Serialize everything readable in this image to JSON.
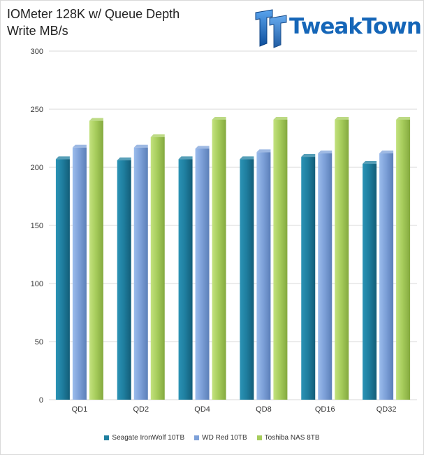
{
  "header": {
    "title_line1": "IOMeter 128K w/ Queue Depth",
    "title_line2": "Write MB/s",
    "logo_text": "TweakTown"
  },
  "chart_data": {
    "type": "bar",
    "title": "IOMeter 128K w/ Queue Depth Write MB/s",
    "xlabel": "",
    "ylabel": "",
    "ylim": [
      0,
      300
    ],
    "yticks": [
      0,
      50,
      100,
      150,
      200,
      250,
      300
    ],
    "grid": true,
    "legend_position": "bottom",
    "categories": [
      "QD1",
      "QD2",
      "QD4",
      "QD8",
      "QD16",
      "QD32"
    ],
    "series": [
      {
        "name": "Seagate IronWolf 10TB",
        "color": "#1f7fa0",
        "values": [
          207,
          206,
          207,
          207,
          209,
          203
        ]
      },
      {
        "name": "WD Red 10TB",
        "color": "#7ea1d9",
        "values": [
          217,
          217,
          216,
          213,
          212,
          212
        ]
      },
      {
        "name": "Toshiba NAS 8TB",
        "color": "#a7cd5c",
        "values": [
          240,
          226,
          241,
          241,
          241,
          241
        ]
      }
    ]
  }
}
